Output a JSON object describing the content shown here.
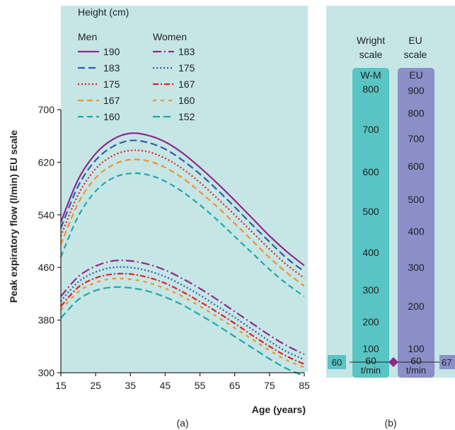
{
  "chart_data": [
    {
      "type": "line",
      "panel_label": "(a)",
      "xlabel": "Age (years)",
      "ylabel": "Peak expiratory flow (l/min) EU scale",
      "xlim": [
        15,
        85
      ],
      "ylim": [
        300,
        700
      ],
      "xticks": [
        15,
        25,
        35,
        45,
        55,
        65,
        75,
        85
      ],
      "yticks": [
        300,
        380,
        460,
        540,
        620,
        700
      ],
      "legend": {
        "title": "Height (cm)",
        "men_header": "Men",
        "women_header": "Women",
        "placement": "top-left"
      },
      "x": [
        15,
        20,
        25,
        30,
        35,
        40,
        45,
        50,
        55,
        60,
        65,
        70,
        75,
        80,
        85
      ],
      "men": [
        {
          "name": "190",
          "color": "#8e2a8e",
          "dash": "solid",
          "values": [
            529,
            594,
            633,
            655,
            664,
            661,
            651,
            634,
            612,
            588,
            562,
            535,
            508,
            484,
            463
          ]
        },
        {
          "name": "183",
          "color": "#2e5ea8",
          "dash": "long-dash",
          "values": [
            520,
            584,
            623,
            644,
            653,
            650,
            640,
            623,
            602,
            578,
            552,
            525,
            499,
            474,
            454
          ]
        },
        {
          "name": "175",
          "color": "#e02020",
          "dash": "dot",
          "values": [
            508,
            571,
            610,
            630,
            638,
            636,
            626,
            610,
            589,
            565,
            540,
            514,
            488,
            464,
            444
          ]
        },
        {
          "name": "167",
          "color": "#f0922c",
          "dash": "dash",
          "values": [
            495,
            558,
            596,
            616,
            624,
            622,
            612,
            596,
            575,
            552,
            527,
            501,
            475,
            452,
            432
          ]
        },
        {
          "name": "160",
          "color": "#1fa8a8",
          "dash": "dash",
          "values": [
            476,
            538,
            576,
            596,
            603,
            601,
            591,
            575,
            555,
            532,
            507,
            482,
            457,
            435,
            416
          ]
        }
      ],
      "women": [
        {
          "name": "183",
          "color": "#8e2a8e",
          "dash": "long-dash-dot",
          "values": [
            416,
            446,
            462,
            470,
            470,
            465,
            456,
            443,
            428,
            411,
            393,
            375,
            357,
            341,
            328
          ]
        },
        {
          "name": "175",
          "color": "#2e5ea8",
          "dash": "dot",
          "values": [
            409,
            438,
            453,
            460,
            460,
            455,
            446,
            433,
            418,
            401,
            384,
            366,
            348,
            332,
            320
          ]
        },
        {
          "name": "167",
          "color": "#e02020",
          "dash": "dash-dot",
          "values": [
            401,
            430,
            444,
            450,
            450,
            445,
            436,
            423,
            408,
            392,
            375,
            357,
            340,
            325,
            313
          ]
        },
        {
          "name": "160",
          "color": "#f0922c",
          "dash": "short-dash",
          "values": [
            395,
            423,
            437,
            443,
            442,
            437,
            428,
            416,
            401,
            385,
            368,
            351,
            334,
            319,
            308
          ]
        },
        {
          "name": "152",
          "color": "#1fa8a8",
          "dash": "long-dash",
          "values": [
            383,
            411,
            425,
            430,
            429,
            424,
            415,
            403,
            388,
            372,
            355,
            338,
            321,
            306,
            295
          ]
        }
      ]
    },
    {
      "type": "table",
      "panel_label": "(b)",
      "title_left": [
        "Wright",
        "scale"
      ],
      "title_right": [
        "EU",
        "scale"
      ],
      "wright": {
        "header": "W-M",
        "unit": "t/min",
        "values": [
          "800",
          "700",
          "600",
          "500",
          "400",
          "300",
          "200",
          "100",
          "60"
        ],
        "color": "#58c4c4"
      },
      "eu": {
        "header": "EU",
        "unit": "t/min",
        "values": [
          "900",
          "800",
          "700",
          "600",
          "500",
          "400",
          "300",
          "200",
          "100",
          "60"
        ],
        "color": "#8a8fc8"
      },
      "marker_left": "60",
      "marker_right": "67",
      "marker_color": "#8e2a8e"
    }
  ],
  "background_color": "#c6e6e6",
  "axis_color": "#222222"
}
